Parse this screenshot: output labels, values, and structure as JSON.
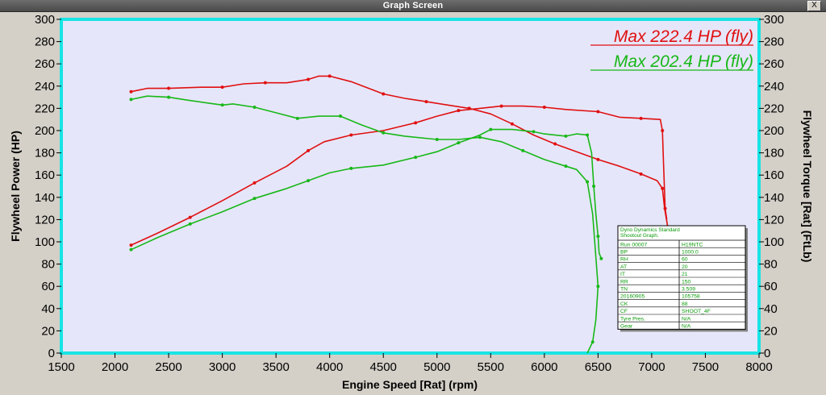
{
  "window": {
    "title": "Graph Screen",
    "close_label": "X"
  },
  "chart_data": {
    "type": "line",
    "xlabel": "Engine Speed [Rat] (rpm)",
    "ylabel_left": "Flywheel Power (HP)",
    "ylabel_right": "Flywheel Torque [Rat] (FtLb)",
    "xlim": [
      1500,
      8000
    ],
    "ylim": [
      0,
      300
    ],
    "x_ticks": [
      1500,
      2000,
      2500,
      3000,
      3500,
      4000,
      4500,
      5000,
      5500,
      6000,
      6500,
      7000,
      7500,
      8000
    ],
    "y_ticks": [
      0,
      20,
      40,
      60,
      80,
      100,
      120,
      140,
      160,
      180,
      200,
      220,
      240,
      260,
      280,
      300
    ],
    "grid": false,
    "background": "#e6e6fa",
    "frame_color": "#18e4e4",
    "annotations": [
      {
        "text": "Max 222.4 HP (fly)",
        "color": "#e01010"
      },
      {
        "text": "Max 202.4 HP (fly)",
        "color": "#18b818"
      }
    ],
    "series": [
      {
        "color": "#e01010",
        "points": [
          [
            2150,
            97
          ],
          [
            2400,
            108
          ],
          [
            2700,
            122
          ],
          [
            3000,
            137
          ],
          [
            3300,
            153
          ],
          [
            3600,
            168
          ],
          [
            3800,
            182
          ],
          [
            3950,
            190
          ],
          [
            4200,
            196
          ],
          [
            4500,
            200
          ],
          [
            4800,
            207
          ],
          [
            5000,
            213
          ],
          [
            5200,
            218
          ],
          [
            5400,
            220
          ],
          [
            5600,
            222
          ],
          [
            5800,
            222
          ],
          [
            6000,
            221
          ],
          [
            6200,
            219
          ],
          [
            6500,
            217
          ],
          [
            6700,
            212
          ],
          [
            6900,
            211
          ],
          [
            7080,
            210
          ],
          [
            7100,
            200
          ],
          [
            7110,
            170
          ],
          [
            7125,
            130
          ],
          [
            7140,
            120
          ]
        ]
      },
      {
        "color": "#e01010",
        "points": [
          [
            2150,
            235
          ],
          [
            2300,
            238
          ],
          [
            2500,
            238
          ],
          [
            2800,
            239
          ],
          [
            3000,
            239
          ],
          [
            3200,
            242
          ],
          [
            3400,
            243
          ],
          [
            3600,
            243
          ],
          [
            3800,
            246
          ],
          [
            3900,
            249
          ],
          [
            4000,
            249
          ],
          [
            4200,
            244
          ],
          [
            4500,
            233
          ],
          [
            4700,
            229
          ],
          [
            4900,
            226
          ],
          [
            5100,
            223
          ],
          [
            5300,
            220
          ],
          [
            5500,
            215
          ],
          [
            5700,
            206
          ],
          [
            5900,
            196
          ],
          [
            6100,
            188
          ],
          [
            6300,
            181
          ],
          [
            6500,
            174
          ],
          [
            6700,
            168
          ],
          [
            6900,
            161
          ],
          [
            7050,
            155
          ],
          [
            7100,
            148
          ],
          [
            7120,
            130
          ],
          [
            7150,
            113
          ]
        ]
      },
      {
        "color": "#18b818",
        "points": [
          [
            2150,
            93
          ],
          [
            2400,
            104
          ],
          [
            2700,
            116
          ],
          [
            3000,
            127
          ],
          [
            3300,
            139
          ],
          [
            3600,
            148
          ],
          [
            3800,
            155
          ],
          [
            4000,
            162
          ],
          [
            4200,
            166
          ],
          [
            4500,
            169
          ],
          [
            4800,
            176
          ],
          [
            5000,
            181
          ],
          [
            5200,
            189
          ],
          [
            5400,
            196
          ],
          [
            5500,
            201
          ],
          [
            5700,
            201
          ],
          [
            5900,
            199
          ],
          [
            6000,
            197
          ],
          [
            6200,
            195
          ],
          [
            6300,
            197
          ],
          [
            6400,
            196
          ],
          [
            6440,
            180
          ],
          [
            6460,
            150
          ],
          [
            6480,
            125
          ],
          [
            6500,
            105
          ],
          [
            6510,
            90
          ],
          [
            6530,
            85
          ]
        ]
      },
      {
        "color": "#18b818",
        "points": [
          [
            2150,
            228
          ],
          [
            2300,
            231
          ],
          [
            2500,
            230
          ],
          [
            2700,
            227
          ],
          [
            3000,
            223
          ],
          [
            3100,
            224
          ],
          [
            3300,
            221
          ],
          [
            3500,
            216
          ],
          [
            3700,
            211
          ],
          [
            3900,
            213
          ],
          [
            4100,
            213
          ],
          [
            4300,
            205
          ],
          [
            4500,
            198
          ],
          [
            4700,
            195
          ],
          [
            5000,
            192
          ],
          [
            5200,
            192
          ],
          [
            5400,
            194
          ],
          [
            5600,
            190
          ],
          [
            5800,
            182
          ],
          [
            6000,
            174
          ],
          [
            6200,
            168
          ],
          [
            6300,
            165
          ],
          [
            6400,
            154
          ],
          [
            6450,
            125
          ],
          [
            6500,
            60
          ],
          [
            6480,
            30
          ],
          [
            6450,
            10
          ],
          [
            6400,
            0
          ]
        ]
      }
    ]
  },
  "info_table": {
    "header": [
      "Dyno Dynamics Standard",
      "Shootout Graph."
    ],
    "rows": [
      [
        "Run 00007",
        "H19NTC"
      ],
      [
        "BP",
        "1000.0"
      ],
      [
        "RH",
        "60"
      ],
      [
        "AT",
        "20"
      ],
      [
        "IT",
        "21"
      ],
      [
        "RR",
        "150"
      ],
      [
        "TN",
        "3.509"
      ],
      [
        "20160905",
        "105758"
      ],
      [
        "CK",
        "88"
      ],
      [
        "CF",
        "SHOOT_4F"
      ],
      [
        "Tyre Pres.",
        "N/A"
      ],
      [
        "Gear",
        "N/A"
      ]
    ]
  }
}
